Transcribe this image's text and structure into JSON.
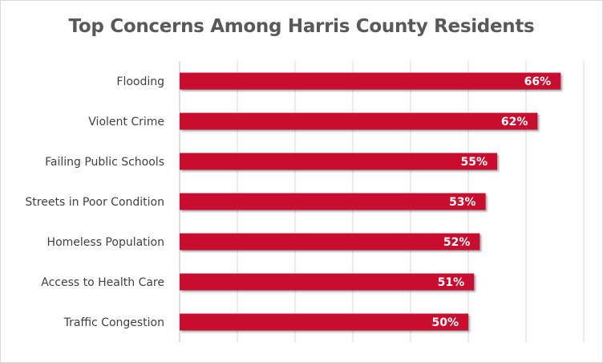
{
  "chart_data": {
    "type": "bar",
    "orientation": "horizontal",
    "title": "Top Concerns Among Harris County Residents",
    "categories": [
      "Flooding",
      "Violent Crime",
      "Failing Public Schools",
      "Streets in Poor Condition",
      "Homeless Population",
      "Access to Health Care",
      "Traffic Congestion"
    ],
    "values": [
      66,
      62,
      55,
      53,
      52,
      51,
      50
    ],
    "value_labels": [
      "66%",
      "62%",
      "55%",
      "53%",
      "52%",
      "51%",
      "50%"
    ],
    "xlim": [
      0,
      70
    ],
    "x_gridlines": [
      0,
      10,
      20,
      30,
      40,
      50,
      60,
      70
    ],
    "grid": true,
    "bar_color": "#c8102e",
    "grid_color": "#d9d9d9"
  }
}
